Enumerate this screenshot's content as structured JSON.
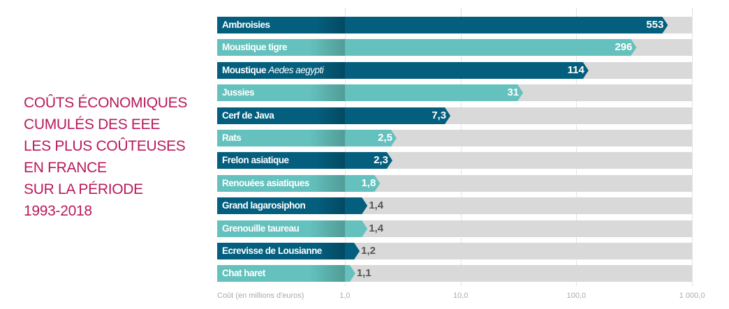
{
  "title_lines": [
    "COÛTS ÉCONOMIQUES",
    "CUMULÉS DES EEE",
    "LES PLUS COÛTEUSES",
    "EN FRANCE",
    "SUR LA PÉRIODE",
    "1993-2018"
  ],
  "chart_data": {
    "type": "bar",
    "orientation": "horizontal",
    "xscale": "log",
    "xlim": [
      1,
      1000
    ],
    "xlabel": "Coût (en millions d'euros)",
    "xticks": [
      "1,0",
      "10,0",
      "100,0",
      "1 000,0"
    ],
    "xtick_values": [
      1,
      10,
      100,
      1000
    ],
    "categories": [
      "Ambroisies",
      "Moustique tigre",
      "Moustique Aedes aegypti",
      "Jussies",
      "Cerf de Java",
      "Rats",
      "Frelon asiatique",
      "Renouées asiatiques",
      "Grand lagarosiphon",
      "Grenouille taureau",
      "Ecrevisse de Lousianne",
      "Chat haret"
    ],
    "values": [
      553,
      296,
      114,
      31,
      7.3,
      2.5,
      2.3,
      1.8,
      1.4,
      1.4,
      1.2,
      1.1
    ],
    "value_labels": [
      "553",
      "296",
      "114",
      "31",
      "7,3",
      "2,5",
      "2,3",
      "1,8",
      "1,4",
      "1,4",
      "1,2",
      "1,1"
    ],
    "colors": {
      "dark": "#045f7e",
      "light": "#64c1bd",
      "track": "#d9d9d9",
      "title": "#b8195a"
    }
  }
}
